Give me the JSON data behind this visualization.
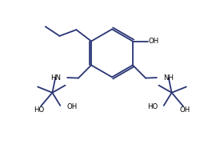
{
  "background": "#ffffff",
  "line_color": "#2a3575",
  "line_width": 1.3,
  "text_color": "#000000",
  "font_size": 6.2,
  "figsize": [
    2.8,
    1.85
  ],
  "dpi": 100,
  "xlim": [
    -4.5,
    4.5
  ],
  "ylim": [
    -3.8,
    3.2
  ]
}
